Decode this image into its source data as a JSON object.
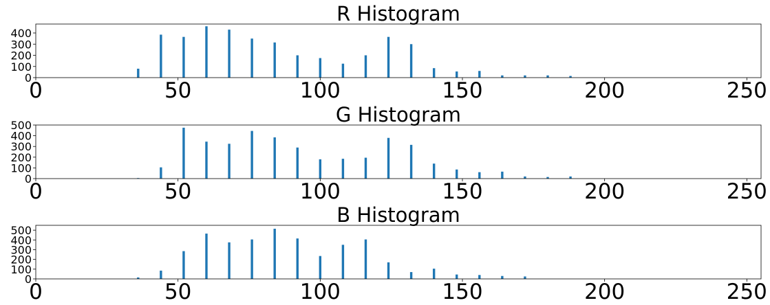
{
  "chart_data": [
    {
      "type": "bar",
      "title": "R Histogram",
      "xlabel": "",
      "ylabel": "",
      "xlim": [
        0,
        255
      ],
      "ylim": [
        0,
        480
      ],
      "xticks": [
        0,
        50,
        100,
        150,
        200,
        250
      ],
      "yticks": [
        0,
        100,
        200,
        300,
        400
      ],
      "grid": false,
      "bar_color": "#1f77b4",
      "x": [
        36,
        44,
        52,
        60,
        68,
        76,
        84,
        92,
        100,
        108,
        116,
        124,
        132,
        140,
        148,
        156,
        164,
        172,
        180,
        188
      ],
      "values": [
        80,
        385,
        365,
        460,
        430,
        350,
        315,
        200,
        175,
        125,
        200,
        365,
        300,
        85,
        55,
        60,
        20,
        20,
        20,
        15
      ]
    },
    {
      "type": "bar",
      "title": "G Histogram",
      "xlabel": "",
      "ylabel": "",
      "xlim": [
        0,
        255
      ],
      "ylim": [
        0,
        500
      ],
      "xticks": [
        0,
        50,
        100,
        150,
        200,
        250
      ],
      "yticks": [
        0,
        100,
        200,
        300,
        400,
        500
      ],
      "grid": false,
      "bar_color": "#1f77b4",
      "x": [
        36,
        44,
        52,
        60,
        68,
        76,
        84,
        92,
        100,
        108,
        116,
        124,
        132,
        140,
        148,
        156,
        164,
        172,
        180,
        188
      ],
      "values": [
        5,
        105,
        475,
        345,
        325,
        445,
        385,
        290,
        180,
        185,
        195,
        380,
        315,
        140,
        85,
        60,
        65,
        20,
        15,
        20
      ]
    },
    {
      "type": "bar",
      "title": "B Histogram",
      "xlabel": "",
      "ylabel": "",
      "xlim": [
        0,
        255
      ],
      "ylim": [
        0,
        550
      ],
      "xticks": [
        0,
        50,
        100,
        150,
        200,
        250
      ],
      "yticks": [
        0,
        100,
        200,
        300,
        400,
        500
      ],
      "grid": false,
      "bar_color": "#1f77b4",
      "x": [
        36,
        44,
        52,
        60,
        68,
        76,
        84,
        92,
        100,
        108,
        116,
        124,
        132,
        140,
        148,
        156,
        164,
        172,
        180,
        188
      ],
      "values": [
        15,
        85,
        285,
        465,
        375,
        405,
        515,
        415,
        235,
        350,
        405,
        170,
        70,
        105,
        45,
        40,
        30,
        25,
        0,
        0
      ]
    }
  ]
}
